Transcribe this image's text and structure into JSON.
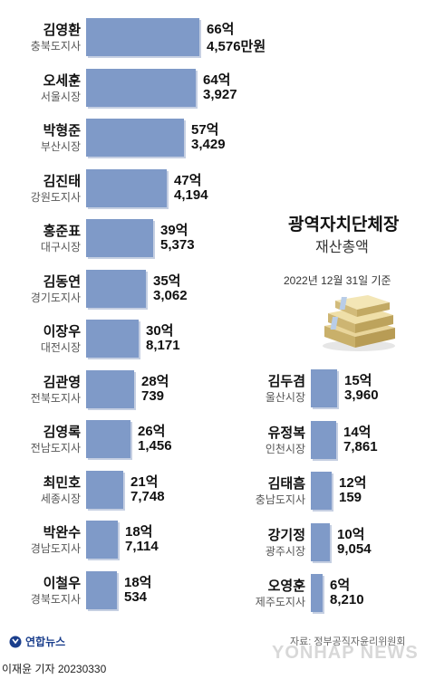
{
  "title": "광역자치단체장",
  "subtitle": "재산총액",
  "basis_date": "2022년 12월 31일 기준",
  "source": "자료: 정부공직자윤리위원회",
  "credit": "이재윤 기자  20230330",
  "agency_logo": "연합뉴스",
  "watermark": "YONHAP NEWS",
  "colors": {
    "bar": "#7f9ac8",
    "bar_shadow": "#c5cfe2"
  },
  "chart_data": {
    "type": "bar",
    "orientation": "horizontal",
    "value_unit": "만원",
    "left_column": [
      {
        "name": "김영환",
        "region": "충북도지사",
        "v1": "66억",
        "v2": "4,576만원",
        "value": 664576
      },
      {
        "name": "오세훈",
        "region": "서울시장",
        "v1": "64억",
        "v2": "3,927",
        "value": 643927
      },
      {
        "name": "박형준",
        "region": "부산시장",
        "v1": "57억",
        "v2": "3,429",
        "value": 573429
      },
      {
        "name": "김진태",
        "region": "강원도지사",
        "v1": "47억",
        "v2": "4,194",
        "value": 474194
      },
      {
        "name": "홍준표",
        "region": "대구시장",
        "v1": "39억",
        "v2": "5,373",
        "value": 395373
      },
      {
        "name": "김동연",
        "region": "경기도지사",
        "v1": "35억",
        "v2": "3,062",
        "value": 353062
      },
      {
        "name": "이장우",
        "region": "대전시장",
        "v1": "30억",
        "v2": "8,171",
        "value": 308171
      },
      {
        "name": "김관영",
        "region": "전북도지사",
        "v1": "28억",
        "v2": "739",
        "value": 280739
      },
      {
        "name": "김영록",
        "region": "전남도지사",
        "v1": "26억",
        "v2": "1,456",
        "value": 261456
      },
      {
        "name": "최민호",
        "region": "세종시장",
        "v1": "21억",
        "v2": "7,748",
        "value": 217748
      },
      {
        "name": "박완수",
        "region": "경남도지사",
        "v1": "18억",
        "v2": "7,114",
        "value": 187114
      },
      {
        "name": "이철우",
        "region": "경북도지사",
        "v1": "18억",
        "v2": "534",
        "value": 180534
      }
    ],
    "right_column": [
      {
        "name": "김두겸",
        "region": "울산시장",
        "v1": "15억",
        "v2": "3,960",
        "value": 153960
      },
      {
        "name": "유정복",
        "region": "인천시장",
        "v1": "14억",
        "v2": "7,861",
        "value": 147861
      },
      {
        "name": "김태흠",
        "region": "충남도지사",
        "v1": "12억",
        "v2": "159",
        "value": 120159
      },
      {
        "name": "강기정",
        "region": "광주시장",
        "v1": "10억",
        "v2": "9,054",
        "value": 109054
      },
      {
        "name": "오영훈",
        "region": "제주도지사",
        "v1": "6억",
        "v2": "8,210",
        "value": 68210
      }
    ]
  }
}
